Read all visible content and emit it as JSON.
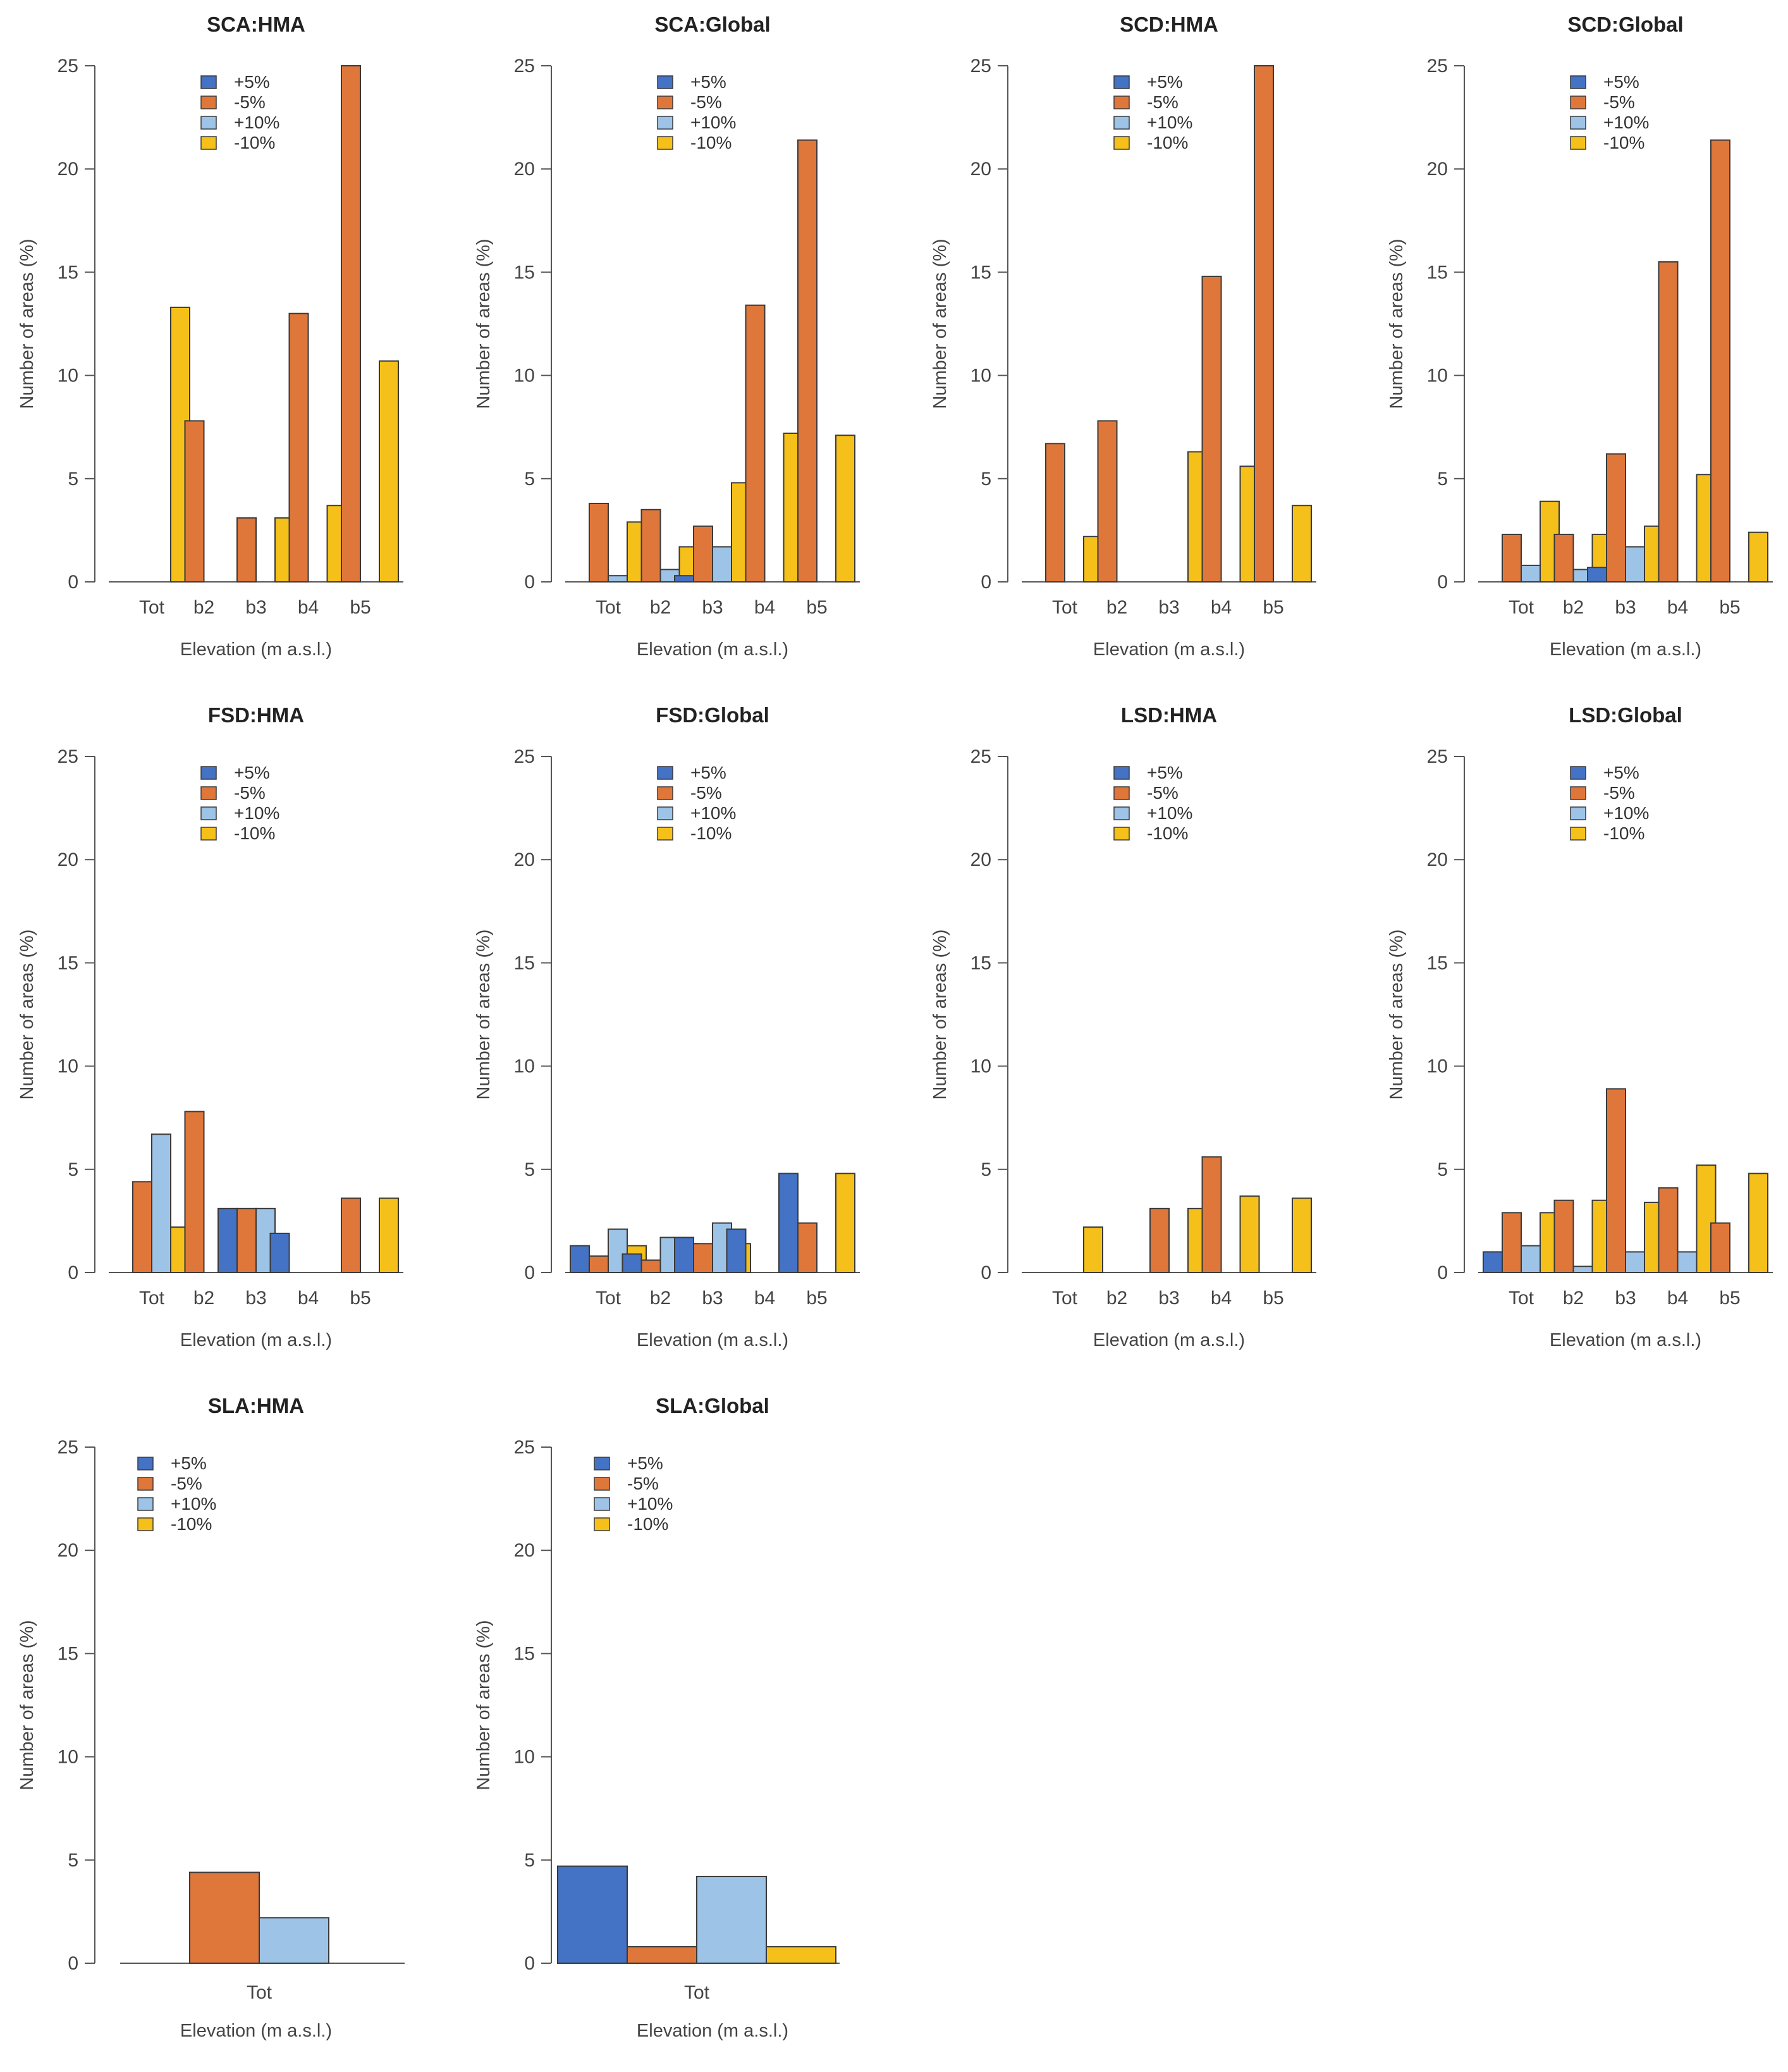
{
  "colors": {
    "plus5": "#4472c4",
    "minus5": "#e0773a",
    "plus10": "#9dc3e6",
    "minus10": "#f5c01a"
  },
  "chart_data": [
    {
      "type": "bar",
      "title": "SCA:HMA",
      "categories": [
        "Tot",
        "b2",
        "b3",
        "b4",
        "b5"
      ],
      "series": [
        {
          "name": "+5%",
          "values": [
            0,
            0,
            0,
            0,
            0
          ]
        },
        {
          "name": "-5%",
          "values": [
            0,
            7.8,
            3.1,
            13.0,
            25.0
          ]
        },
        {
          "name": "+10%",
          "values": [
            0,
            0,
            0,
            0,
            0
          ]
        },
        {
          "name": "-10%",
          "values": [
            13.3,
            0,
            3.1,
            3.7,
            10.7
          ]
        }
      ],
      "xlabel": "Elevation (m a.s.l.)",
      "ylabel": "Number of areas (%)",
      "ylim": [
        0,
        25
      ],
      "yticks": [
        0,
        5,
        10,
        15,
        20,
        25
      ],
      "legend": "top-center"
    },
    {
      "type": "bar",
      "title": "SCA:Global",
      "categories": [
        "Tot",
        "b2",
        "b3",
        "b4",
        "b5"
      ],
      "series": [
        {
          "name": "+5%",
          "values": [
            0,
            0,
            0.3,
            0,
            0
          ]
        },
        {
          "name": "-5%",
          "values": [
            3.8,
            3.5,
            2.7,
            13.4,
            21.4
          ]
        },
        {
          "name": "+10%",
          "values": [
            0.3,
            0.6,
            1.7,
            0,
            0
          ]
        },
        {
          "name": "-10%",
          "values": [
            2.9,
            1.7,
            4.8,
            7.2,
            7.1
          ]
        }
      ],
      "xlabel": "Elevation (m a.s.l.)",
      "ylabel": "Number of areas (%)",
      "ylim": [
        0,
        25
      ],
      "yticks": [
        0,
        5,
        10,
        15,
        20,
        25
      ],
      "legend": "top-center"
    },
    {
      "type": "bar",
      "title": "SCD:HMA",
      "categories": [
        "Tot",
        "b2",
        "b3",
        "b4",
        "b5"
      ],
      "series": [
        {
          "name": "+5%",
          "values": [
            0,
            0,
            0,
            0,
            0
          ]
        },
        {
          "name": "-5%",
          "values": [
            6.7,
            7.8,
            0,
            14.8,
            25.0
          ]
        },
        {
          "name": "+10%",
          "values": [
            0,
            0,
            0,
            0,
            0
          ]
        },
        {
          "name": "-10%",
          "values": [
            2.2,
            0,
            6.3,
            5.6,
            3.7
          ]
        }
      ],
      "xlabel": "Elevation (m a.s.l.)",
      "ylabel": "Number of areas (%)",
      "ylim": [
        0,
        25
      ],
      "yticks": [
        0,
        5,
        10,
        15,
        20,
        25
      ],
      "legend": "top-center"
    },
    {
      "type": "bar",
      "title": "SCD:Global",
      "categories": [
        "Tot",
        "b2",
        "b3",
        "b4",
        "b5"
      ],
      "series": [
        {
          "name": "+5%",
          "values": [
            0,
            0,
            0.7,
            0,
            0
          ]
        },
        {
          "name": "-5%",
          "values": [
            2.3,
            2.3,
            6.2,
            15.5,
            21.4
          ]
        },
        {
          "name": "+10%",
          "values": [
            0.8,
            0.6,
            1.7,
            0,
            0
          ]
        },
        {
          "name": "-10%",
          "values": [
            3.9,
            2.3,
            2.7,
            5.2,
            2.4
          ]
        }
      ],
      "xlabel": "Elevation (m a.s.l.)",
      "ylabel": "Number of areas (%)",
      "ylim": [
        0,
        25
      ],
      "yticks": [
        0,
        5,
        10,
        15,
        20,
        25
      ],
      "legend": "top-center"
    },
    {
      "type": "bar",
      "title": "FSD:HMA",
      "categories": [
        "Tot",
        "b2",
        "b3",
        "b4",
        "b5"
      ],
      "series": [
        {
          "name": "+5%",
          "values": [
            0,
            0,
            3.1,
            1.9,
            0
          ]
        },
        {
          "name": "-5%",
          "values": [
            4.4,
            7.8,
            3.1,
            0,
            3.6
          ]
        },
        {
          "name": "+10%",
          "values": [
            6.7,
            0,
            3.1,
            0,
            0
          ]
        },
        {
          "name": "-10%",
          "values": [
            2.2,
            0,
            0,
            0,
            3.6
          ]
        }
      ],
      "xlabel": "Elevation (m a.s.l.)",
      "ylabel": "Number of areas (%)",
      "ylim": [
        0,
        25
      ],
      "yticks": [
        0,
        5,
        10,
        15,
        20,
        25
      ],
      "legend": "top-center"
    },
    {
      "type": "bar",
      "title": "FSD:Global",
      "categories": [
        "Tot",
        "b2",
        "b3",
        "b4",
        "b5"
      ],
      "series": [
        {
          "name": "+5%",
          "values": [
            1.3,
            0.9,
            1.7,
            2.1,
            4.8
          ]
        },
        {
          "name": "-5%",
          "values": [
            0.8,
            0.6,
            1.4,
            0,
            2.4
          ]
        },
        {
          "name": "+10%",
          "values": [
            2.1,
            1.7,
            2.4,
            0,
            0
          ]
        },
        {
          "name": "-10%",
          "values": [
            1.3,
            1.4,
            1.4,
            0,
            4.8
          ]
        }
      ],
      "xlabel": "Elevation (m a.s.l.)",
      "ylabel": "Number of areas (%)",
      "ylim": [
        0,
        25
      ],
      "yticks": [
        0,
        5,
        10,
        15,
        20,
        25
      ],
      "legend": "top-center"
    },
    {
      "type": "bar",
      "title": "LSD:HMA",
      "categories": [
        "Tot",
        "b2",
        "b3",
        "b4",
        "b5"
      ],
      "series": [
        {
          "name": "+5%",
          "values": [
            0,
            0,
            0,
            0,
            0
          ]
        },
        {
          "name": "-5%",
          "values": [
            0,
            0,
            3.1,
            5.6,
            0
          ]
        },
        {
          "name": "+10%",
          "values": [
            0,
            0,
            0,
            0,
            0
          ]
        },
        {
          "name": "-10%",
          "values": [
            2.2,
            0,
            3.1,
            3.7,
            3.6
          ]
        }
      ],
      "xlabel": "Elevation (m a.s.l.)",
      "ylabel": "Number of areas (%)",
      "ylim": [
        0,
        25
      ],
      "yticks": [
        0,
        5,
        10,
        15,
        20,
        25
      ],
      "legend": "top-center"
    },
    {
      "type": "bar",
      "title": "LSD:Global",
      "categories": [
        "Tot",
        "b2",
        "b3",
        "b4",
        "b5"
      ],
      "series": [
        {
          "name": "+5%",
          "values": [
            1.0,
            0,
            0,
            0,
            0
          ]
        },
        {
          "name": "-5%",
          "values": [
            2.9,
            3.5,
            8.9,
            4.1,
            2.4
          ]
        },
        {
          "name": "+10%",
          "values": [
            1.3,
            0.3,
            1.0,
            1.0,
            0
          ]
        },
        {
          "name": "-10%",
          "values": [
            2.9,
            3.5,
            3.4,
            5.2,
            4.8
          ]
        }
      ],
      "xlabel": "Elevation (m a.s.l.)",
      "ylabel": "Number of areas (%)",
      "ylim": [
        0,
        25
      ],
      "yticks": [
        0,
        5,
        10,
        15,
        20,
        25
      ],
      "legend": "top-center"
    },
    {
      "type": "bar",
      "title": "SLA:HMA",
      "categories": [
        "Tot"
      ],
      "series": [
        {
          "name": "+5%",
          "values": [
            0
          ]
        },
        {
          "name": "-5%",
          "values": [
            4.4
          ]
        },
        {
          "name": "+10%",
          "values": [
            2.2
          ]
        },
        {
          "name": "-10%",
          "values": [
            0
          ]
        }
      ],
      "xlabel": "Elevation (m a.s.l.)",
      "ylabel": "Number of areas (%)",
      "ylim": [
        0,
        25
      ],
      "yticks": [
        0,
        5,
        10,
        15,
        20,
        25
      ],
      "legend": "top-left"
    },
    {
      "type": "bar",
      "title": "SLA:Global",
      "categories": [
        "Tot"
      ],
      "series": [
        {
          "name": "+5%",
          "values": [
            4.7
          ]
        },
        {
          "name": "-5%",
          "values": [
            0.8
          ]
        },
        {
          "name": "+10%",
          "values": [
            4.2
          ]
        },
        {
          "name": "-10%",
          "values": [
            0.8
          ]
        }
      ],
      "xlabel": "Elevation (m a.s.l.)",
      "ylabel": "Number of areas (%)",
      "ylim": [
        0,
        25
      ],
      "yticks": [
        0,
        5,
        10,
        15,
        20,
        25
      ],
      "legend": "top-left"
    }
  ]
}
